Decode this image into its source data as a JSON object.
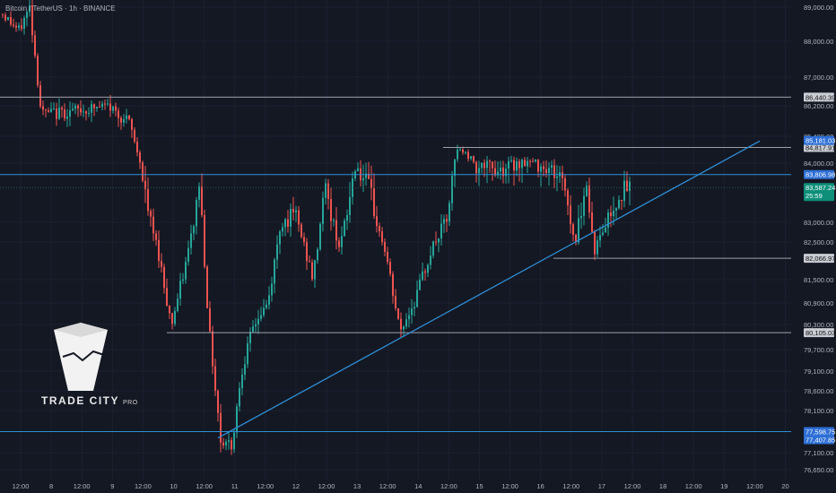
{
  "header": {
    "title": "Bitcoin / TetherUS · 1h · BINANCE"
  },
  "logo": {
    "name": "TRADE CITY",
    "sub": "PRO"
  },
  "colors": {
    "background": "#141823",
    "up": "#26a69a",
    "down": "#ef5350",
    "level": "#b2b5be",
    "trend": "#2e8fd6"
  },
  "chart_data": {
    "type": "candlestick",
    "title": "Bitcoin / TetherUS · 1h · BINANCE",
    "y_ticks": [
      89000,
      88000,
      87000,
      86200,
      85400,
      84000,
      83000,
      82500,
      81500,
      80900,
      80300,
      79700,
      79100,
      78600,
      78100,
      77100,
      76650
    ],
    "x_ticks": [
      "12:00",
      "8",
      "12:00",
      "9",
      "12:00",
      "10",
      "12:00",
      "11",
      "12:00",
      "12",
      "12:00",
      "13",
      "12:00",
      "14",
      "12:00",
      "15",
      "12:00",
      "16",
      "12:00",
      "17",
      "12:00",
      "18",
      "12:00",
      "19",
      "12:00",
      "20"
    ],
    "horizontal_levels": [
      {
        "value": 86440.39,
        "label": "86,440.39",
        "style": "gray"
      },
      {
        "value": 84817.91,
        "label": "84,817.91",
        "style": "gray"
      },
      {
        "value": 83806.98,
        "label": "83,806.98",
        "style": "blue"
      },
      {
        "value": 82066.97,
        "label": "82,066.97",
        "style": "gray"
      },
      {
        "value": 80105.03,
        "label": "80,105.03",
        "style": "gray"
      },
      {
        "value": 77598.75,
        "label": "77,598.75",
        "style": "blue"
      }
    ],
    "price_labels": [
      {
        "value": 85181.03,
        "label": "85,181.03",
        "style": "blue"
      },
      {
        "value": 83587.24,
        "label": "83,587.24",
        "countdown": "25:59",
        "style": "green"
      },
      {
        "value": 77407.85,
        "label": "77,407.85",
        "style": "blue"
      }
    ],
    "trendline": {
      "start": {
        "time": "10 12:00",
        "price": 77450
      },
      "end": {
        "time": "19 00:00",
        "price": 85150
      }
    }
  }
}
